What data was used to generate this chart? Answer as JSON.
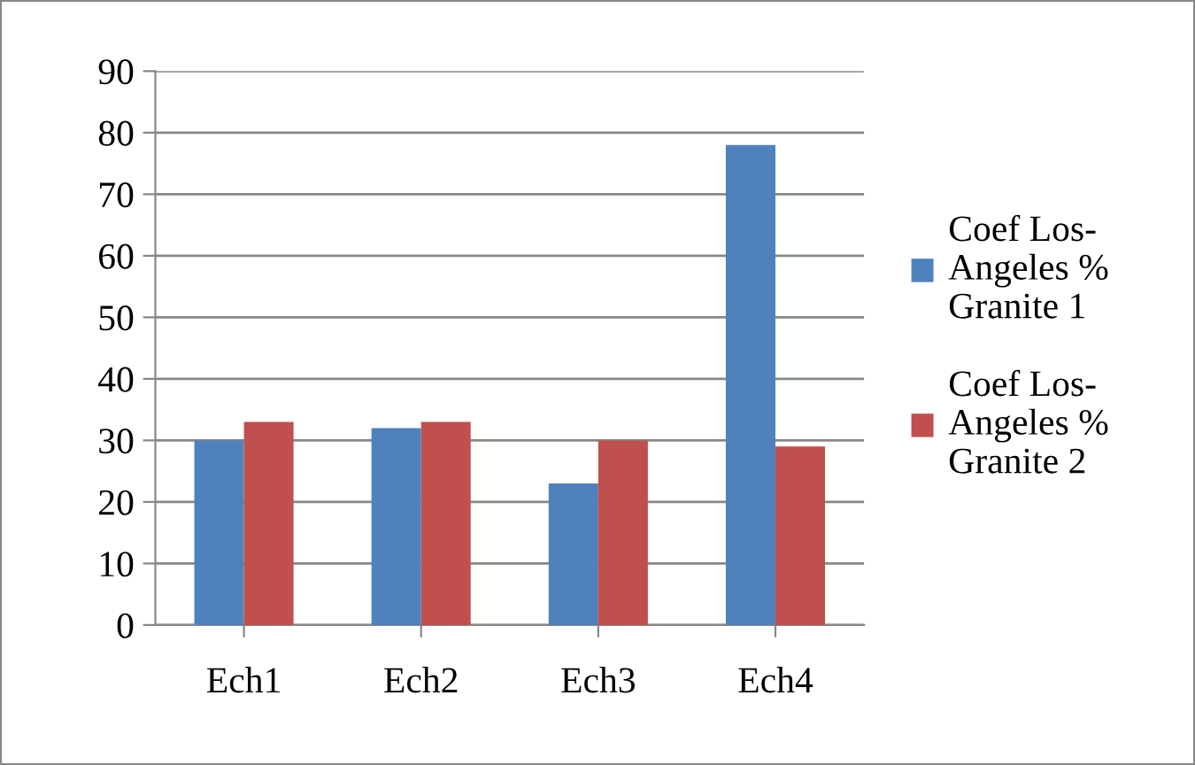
{
  "chart_data": {
    "type": "bar",
    "categories": [
      "Ech1",
      "Ech2",
      "Ech3",
      "Ech4"
    ],
    "series": [
      {
        "name": "Coef Los-\nAngeles %\nGranite 1",
        "color": "#4f81bd",
        "values": [
          30,
          32,
          23,
          78
        ]
      },
      {
        "name": "Coef Los-\nAngeles %\nGranite 2",
        "color": "#c0504d",
        "values": [
          33,
          33,
          30,
          29
        ]
      }
    ],
    "ylim": [
      0,
      90
    ],
    "yticks": [
      0,
      10,
      20,
      30,
      40,
      50,
      60,
      70,
      80,
      90
    ],
    "grid": "y",
    "legend": "right"
  }
}
